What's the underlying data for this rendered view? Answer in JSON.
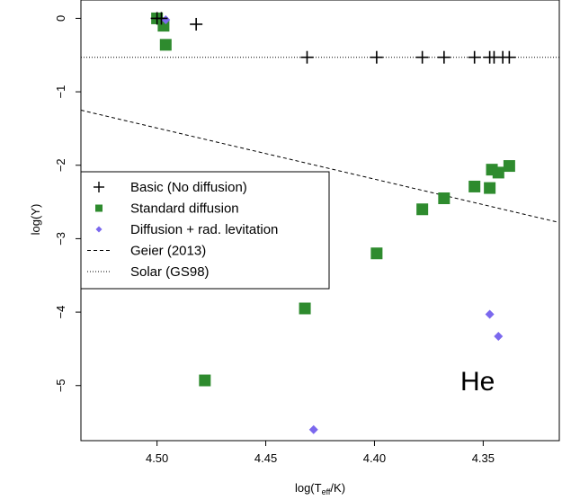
{
  "chart_data": {
    "type": "scatter",
    "xlabel": "log(T",
    "xlabel_sub": "eff",
    "xlabel_suffix": "/K)",
    "ylabel": "log(Y)",
    "xlim": [
      4.535,
      4.315
    ],
    "ylim": [
      -5.75,
      0.25
    ],
    "x_reversed": true,
    "x_ticks": [
      4.5,
      4.45,
      4.4,
      4.35
    ],
    "x_tick_labels": [
      "4.50",
      "4.45",
      "4.40",
      "4.35"
    ],
    "y_ticks": [
      0,
      -1,
      -2,
      -3,
      -4,
      -5
    ],
    "y_tick_labels": [
      "0",
      "−1",
      "−2",
      "−3",
      "−4",
      "−5"
    ],
    "grid": false,
    "legend_placement": "left-middle",
    "annotation": "He",
    "series": [
      {
        "name": "Basic (No diffusion)",
        "marker": "plus",
        "color": "#000000",
        "x": [
          4.5,
          4.498,
          4.482,
          4.431,
          4.399,
          4.378,
          4.368,
          4.354,
          4.347,
          4.345,
          4.341,
          4.338
        ],
        "y": [
          0.0,
          0.0,
          -0.08,
          -0.53,
          -0.53,
          -0.53,
          -0.53,
          -0.53,
          -0.53,
          -0.53,
          -0.53,
          -0.53
        ]
      },
      {
        "name": "Standard diffusion",
        "marker": "square",
        "color": "#2e8b2e",
        "x": [
          4.5,
          4.497,
          4.496,
          4.478,
          4.432,
          4.399,
          4.378,
          4.368,
          4.354,
          4.347,
          4.346,
          4.343,
          4.338
        ],
        "y": [
          0.0,
          -0.1,
          -0.36,
          -4.93,
          -3.95,
          -3.2,
          -2.6,
          -2.45,
          -2.29,
          -2.31,
          -2.06,
          -2.1,
          -2.01
        ]
      },
      {
        "name": "Diffusion + rad. levitation",
        "marker": "diamond",
        "color": "#7b68ee",
        "x": [
          4.496,
          4.428,
          4.347,
          4.343
        ],
        "y": [
          -0.02,
          -5.6,
          -4.03,
          -4.33
        ]
      }
    ],
    "lines": [
      {
        "name": "Geier (2013)",
        "style": "dashed",
        "color": "#000000",
        "x": [
          4.535,
          4.315
        ],
        "y": [
          -1.25,
          -2.78
        ]
      },
      {
        "name": "Solar (GS98)",
        "style": "dotted",
        "color": "#000000",
        "y_const": -0.53
      }
    ]
  }
}
